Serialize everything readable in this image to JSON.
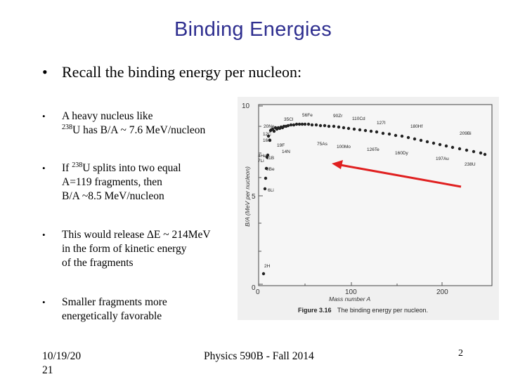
{
  "slide": {
    "title": "Binding Energies",
    "main_bullet": "Recall the binding energy per nucleon:",
    "bullet_char": "•",
    "bullets": [
      {
        "line1": "A heavy nucleus like",
        "sup": "238",
        "line2": "U has B/A ~ 7.6 MeV/nucleon"
      },
      {
        "pre": "If ",
        "sup": "238",
        "rest": "U splits into two equal",
        "line2": "A=119 fragments, then",
        "line3": "B/A ~8.5 MeV/nucleon"
      },
      {
        "line1": "This would release ΔE ~ 214MeV",
        "line2": "in the form of kinetic energy",
        "line3": "of the fragments"
      },
      {
        "line1": "Smaller fragments more",
        "line2": "energetically favorable"
      }
    ]
  },
  "figure": {
    "y_axis_label": "B/A (MeV per nucleon)",
    "x_axis_label": "Mass number A",
    "y_ticks": [
      "10",
      "5",
      "0"
    ],
    "x_ticks": [
      "0",
      "100",
      "200"
    ],
    "caption_bold": "Figure 3.16",
    "caption_text": "The binding energy per nucleon.",
    "nuclide_labels": {
      "ne20": "20Ne",
      "c12": "12C",
      "o16": "16O",
      "cl35": "35Cl",
      "fe56": "56Fe",
      "zr90": "90Zr",
      "cd110": "110Cd",
      "i127": "127I",
      "hf180": "180Hf",
      "bi209": "209Bi",
      "he4": "4He",
      "li7": "7Li",
      "f19": "19F",
      "n14": "14N",
      "as75": "75As",
      "mo100": "100Mo",
      "te126": "126Te",
      "dy160": "160Dy",
      "au197": "197Au",
      "u238": "238U",
      "b11": "11B",
      "be9": "9Be",
      "li6": "6Li",
      "h2": "2H"
    },
    "arrow_color": "#e02020"
  },
  "footer": {
    "date_line1": "10/19/20",
    "date_line2": "21",
    "course": "Physics 590B - Fall 2014",
    "page_number": "2"
  }
}
